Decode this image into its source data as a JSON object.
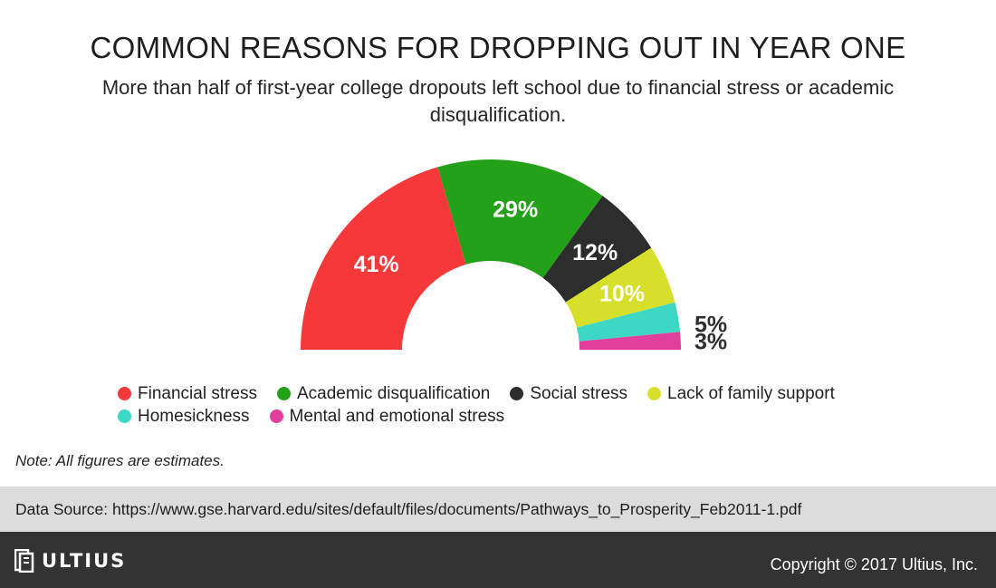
{
  "header": {
    "title": "COMMON REASONS FOR DROPPING OUT IN YEAR ONE",
    "subtitle": "More than half of first-year college dropouts left school due to financial stress or academic disqualification."
  },
  "chart_data": {
    "type": "pie",
    "variant": "half-donut",
    "title": "COMMON REASONS FOR DROPPING OUT IN YEAR ONE",
    "subtitle": "More than half of first-year college dropouts left school due to financial stress or academic disqualification.",
    "legend_position": "bottom",
    "categories": [
      "Financial stress",
      "Academic disqualification",
      "Social stress",
      "Lack of family support",
      "Homesickness",
      "Mental and emotional stress"
    ],
    "values": [
      41,
      29,
      12,
      10,
      5,
      3
    ],
    "labels": [
      "41%",
      "29%",
      "12%",
      "10%",
      "5%",
      "3%"
    ],
    "colors": [
      "#f5393a",
      "#23a118",
      "#2d2d2d",
      "#d6e02a",
      "#3cd8c4",
      "#e23e9e"
    ]
  },
  "legend": {
    "rows": [
      [
        {
          "label": "Financial stress",
          "color": "#f5393a"
        },
        {
          "label": "Academic disqualification",
          "color": "#23a118"
        },
        {
          "label": "Social stress",
          "color": "#2d2d2d"
        },
        {
          "label": "Lack of family support",
          "color": "#d6e02a"
        }
      ],
      [
        {
          "label": "Homesickness",
          "color": "#3cd8c4"
        },
        {
          "label": "Mental and emotional stress",
          "color": "#e23e9e"
        }
      ]
    ]
  },
  "note": "Note: All figures are estimates.",
  "source": "Data Source: https://www.gse.harvard.edu/sites/default/files/documents/Pathways_to_Prosperity_Feb2011-1.pdf",
  "footer": {
    "logo_text": "ULTIUS",
    "copyright": "Copyright © 2017 Ultius, Inc."
  }
}
